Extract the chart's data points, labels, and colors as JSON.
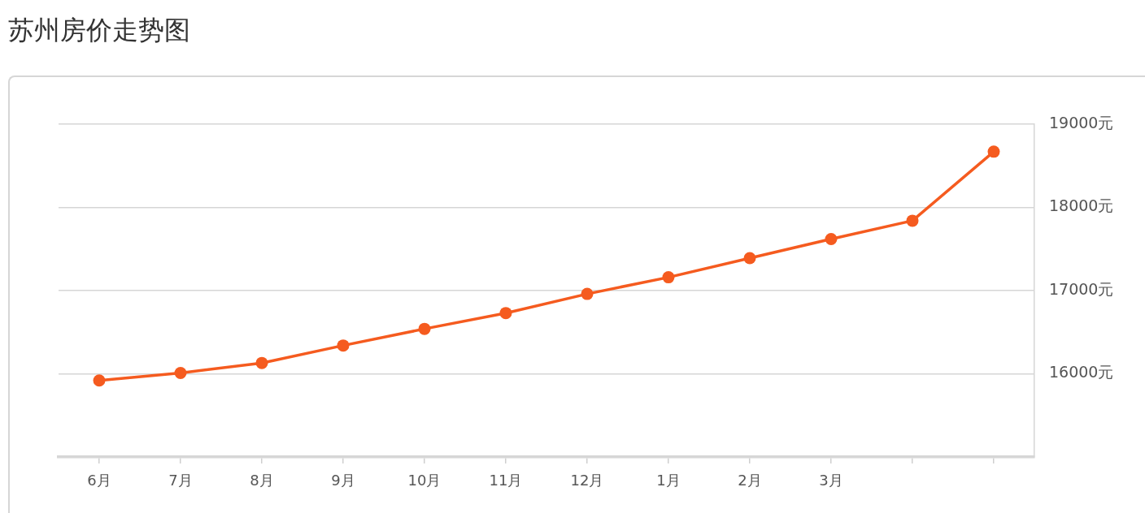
{
  "chart_data": {
    "type": "line",
    "title": "苏州房价走势图",
    "categories": [
      "6月",
      "7月",
      "8月",
      "9月",
      "10月",
      "11月",
      "12月",
      "1月",
      "2月",
      "3月",
      null,
      null
    ],
    "series": [
      {
        "color": "#f55b1f",
        "values": [
          15920,
          16010,
          16130,
          16340,
          16540,
          16730,
          16960,
          17160,
          17390,
          17620,
          17840,
          18670
        ]
      }
    ],
    "ylim": [
      15000,
      19000
    ],
    "yticks": [
      {
        "value": 16000,
        "label": "16000元"
      },
      {
        "value": 17000,
        "label": "17000元"
      },
      {
        "value": 18000,
        "label": "18000元"
      },
      {
        "value": 19000,
        "label": "19000元"
      }
    ],
    "grid": "y",
    "marker": "circle",
    "line_style": "solid"
  }
}
